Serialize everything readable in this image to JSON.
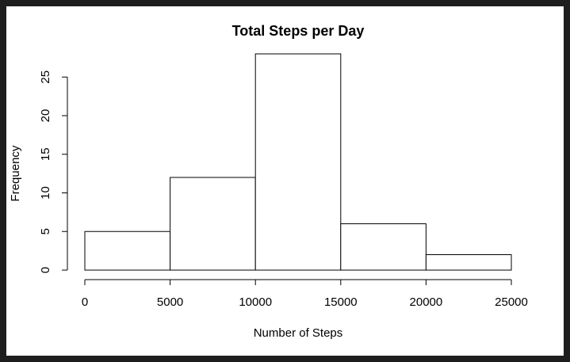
{
  "chart_data": {
    "type": "histogram",
    "title": "Total Steps per Day",
    "x_label": "Number of Steps",
    "y_label": "Frequency",
    "bins": [
      0,
      5000,
      10000,
      15000,
      20000,
      25000
    ],
    "values": [
      5,
      12,
      28,
      6,
      2
    ],
    "color": "#ffffff",
    "edge_color": "#000000",
    "xlim": [
      0,
      25000
    ],
    "xticks": [
      0,
      5000,
      10000,
      15000,
      20000,
      25000
    ],
    "ylim": [
      0,
      28
    ],
    "yticks": [
      0,
      5,
      10,
      15,
      20,
      25
    ]
  }
}
